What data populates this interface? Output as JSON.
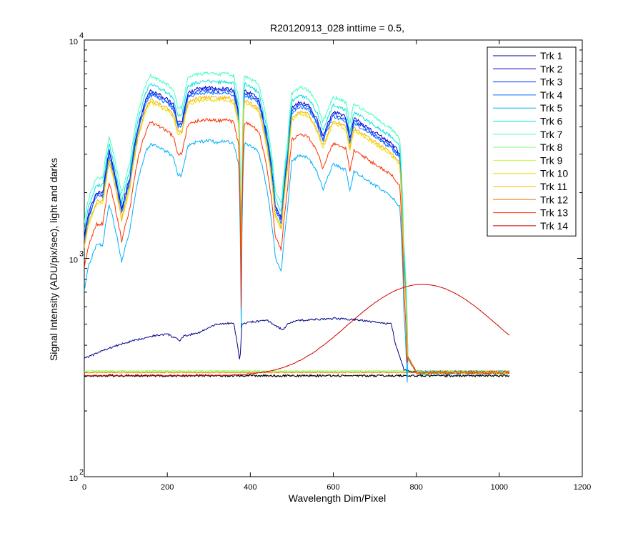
{
  "chart_data": {
    "type": "line",
    "title": "R20120913_028 inttime = 0.5,",
    "xlabel": "Wavelength Dim/Pixel",
    "ylabel": "Signal Intensity (ADU/pix/sec), light and darks",
    "xlim": [
      0,
      1200
    ],
    "ylim": [
      100,
      10000
    ],
    "yscale": "log",
    "xticks": [
      0,
      200,
      400,
      600,
      800,
      1000,
      1200
    ],
    "yticks_major": [
      {
        "base": "10",
        "exp": "2",
        "value": 100
      },
      {
        "base": "10",
        "exp": "3",
        "value": 1000
      },
      {
        "base": "10",
        "exp": "4",
        "value": 10000
      }
    ],
    "legend_position": "top-right",
    "series": [
      {
        "name": "Trk 1",
        "color": "#00008f",
        "profile": "lowsignal",
        "scale": 1.0
      },
      {
        "name": "Trk 2",
        "color": "#0000c8",
        "profile": "solar",
        "scale": 0.84
      },
      {
        "name": "Trk 3",
        "color": "#0030ff",
        "profile": "solar",
        "scale": 0.82
      },
      {
        "name": "Trk 4",
        "color": "#0070ff",
        "profile": "solar",
        "scale": 0.8
      },
      {
        "name": "Trk 5",
        "color": "#00b0ff",
        "profile": "solar",
        "scale": 0.48
      },
      {
        "name": "Trk 6",
        "color": "#00e0e0",
        "profile": "solar",
        "scale": 0.9
      },
      {
        "name": "Trk 7",
        "color": "#40ffc0",
        "profile": "solar",
        "scale": 0.98
      },
      {
        "name": "Trk 8",
        "color": "#80ff80",
        "profile": "dark",
        "scale": 305
      },
      {
        "name": "Trk 9",
        "color": "#c0ff40",
        "profile": "dark",
        "scale": 303
      },
      {
        "name": "Trk 10",
        "color": "#e8e000",
        "profile": "solar",
        "scale": 0.74
      },
      {
        "name": "Trk 11",
        "color": "#ffb000",
        "profile": "solar",
        "scale": 0.76
      },
      {
        "name": "Trk 12",
        "color": "#ff7000",
        "profile": "dark",
        "scale": 300
      },
      {
        "name": "Trk 13",
        "color": "#ff3000",
        "profile": "solar",
        "scale": 0.6
      },
      {
        "name": "Trk 14",
        "color": "#d00000",
        "profile": "gaussian",
        "scale": 1.0
      }
    ],
    "dark_series": {
      "name": "dark",
      "color": "#000000",
      "level": 290
    },
    "solar_reference": {
      "x": [
        0,
        10,
        30,
        45,
        60,
        75,
        90,
        110,
        130,
        150,
        160,
        180,
        200,
        215,
        225,
        235,
        250,
        270,
        300,
        320,
        340,
        360,
        372,
        378,
        385,
        400,
        420,
        440,
        460,
        475,
        490,
        500,
        520,
        540,
        560,
        575,
        600,
        630,
        640,
        650,
        700,
        740,
        760,
        770,
        780,
        800,
        850,
        900,
        1000,
        1025
      ],
      "y": [
        1500,
        1900,
        2400,
        2400,
        3700,
        2800,
        2000,
        2800,
        4800,
        6500,
        7000,
        6700,
        6400,
        6000,
        5000,
        5000,
        6800,
        7100,
        7200,
        7100,
        7200,
        7000,
        5500,
        1000,
        7000,
        6800,
        6400,
        4300,
        2100,
        1800,
        3500,
        5800,
        6200,
        6000,
        5200,
        4300,
        5600,
        5300,
        4200,
        5200,
        4500,
        4000,
        3600,
        1200,
        400,
        300,
        300,
        300,
        300,
        300
      ]
    },
    "lowsignal_reference": {
      "x": [
        0,
        20,
        40,
        80,
        120,
        160,
        200,
        230,
        240,
        250,
        280,
        320,
        360,
        375,
        380,
        400,
        440,
        470,
        480,
        490,
        520,
        560,
        600,
        650,
        700,
        740,
        750,
        770,
        800,
        1025
      ],
      "y": [
        350,
        360,
        375,
        400,
        420,
        440,
        450,
        420,
        440,
        445,
        460,
        500,
        505,
        330,
        500,
        510,
        520,
        480,
        470,
        505,
        520,
        525,
        530,
        525,
        510,
        500,
        400,
        310,
        300,
        300
      ]
    },
    "gaussian": {
      "peak_x": 815,
      "peak_y": 760,
      "base_y": 290,
      "sigma": 140
    }
  }
}
